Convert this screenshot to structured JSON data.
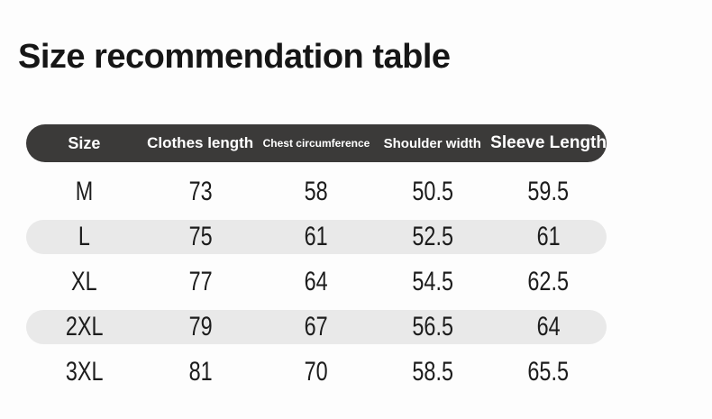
{
  "page": {
    "title": "Size recommendation table"
  },
  "colors": {
    "title_color": "#161616",
    "header_bg": "#3b3a39",
    "header_text": "#ffffff",
    "stripe": "#e9e9e9",
    "body_text": "#1c1c1c",
    "background": "#fdfdfd"
  },
  "chart_data": {
    "type": "table",
    "title": "Size recommendation table",
    "columns": [
      "Size",
      "Clothes length",
      "Chest circumference",
      "Shoulder width",
      "Sleeve Length"
    ],
    "rows": [
      [
        "M",
        "73",
        "58",
        "50.5",
        "59.5"
      ],
      [
        "L",
        "75",
        "61",
        "52.5",
        "61"
      ],
      [
        "XL",
        "77",
        "64",
        "54.5",
        "62.5"
      ],
      [
        "2XL",
        "79",
        "67",
        "56.5",
        "64"
      ],
      [
        "3XL",
        "81",
        "70",
        "58.5",
        "65.5"
      ]
    ],
    "layout_hints": {
      "striped_rows": [
        1,
        3
      ],
      "header_shape": "pill",
      "stripe_shape": "pill",
      "grid": false
    }
  }
}
